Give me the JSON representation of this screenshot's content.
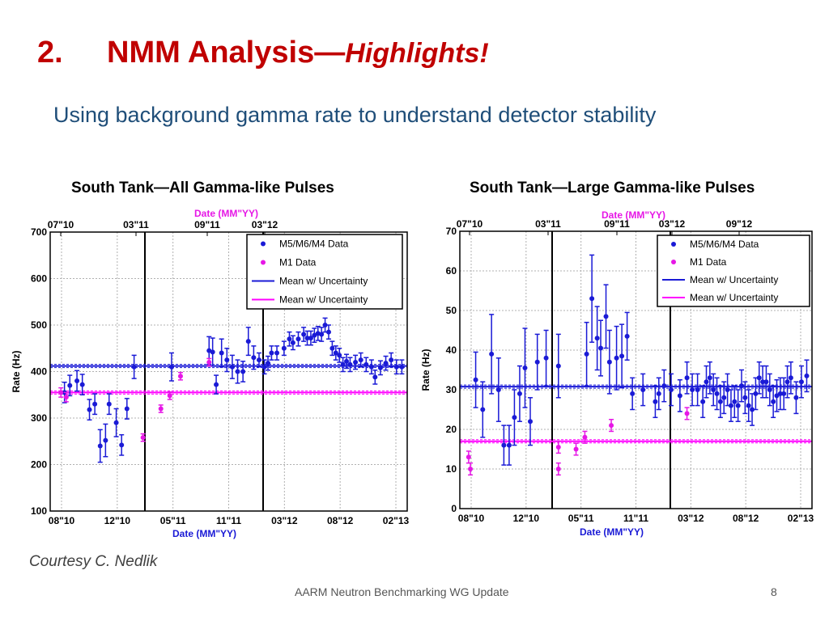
{
  "slide": {
    "title_number": "2.",
    "title_main": "NMM Analysis—",
    "title_highlight": "Highlights!",
    "subtitle": "Using background gamma rate to understand detector stability",
    "courtesy": "Courtesy C. Nedlik",
    "footer": "AARM Neutron Benchmarking WG Update",
    "page_number": "8"
  },
  "colors": {
    "title": "#c00000",
    "subtitle": "#1f4e79",
    "m5m6m4": "#1a1ad6",
    "m1": "#e617e6",
    "mean_blue": "#1a1ad6",
    "mean_magenta": "#ff00ff"
  },
  "chart_data": [
    {
      "type": "scatter",
      "title": "South Tank—All Gamma-like Pulses",
      "ylabel": "Rate (Hz)",
      "xlabel": "Date (MM\"YY)",
      "top_xlabel": "Date (MM\"YY)",
      "ylim": [
        100,
        700
      ],
      "yticks": [
        "100",
        "200",
        "300",
        "400",
        "500",
        "600",
        "700"
      ],
      "bottom_ticks": [
        "08\"10",
        "12\"10",
        "05\"11",
        "11\"11",
        "03\"12",
        "08\"12",
        "02\"13"
      ],
      "top_ticks": [
        "07\"10",
        "03\"11",
        "09\"11",
        "03\"12"
      ],
      "vlines_at_tick": [
        "03\"11",
        "03\"12"
      ],
      "grid": true,
      "legend": {
        "placement": "top-right",
        "items": [
          "M5/M6/M4 Data",
          "M1 Data",
          "Mean w/ Uncertainty",
          "Mean w/ Uncertainty"
        ]
      },
      "mean_m5m6m4": 412,
      "mean_m1": 355,
      "series": [
        {
          "name": "M5/M6/M4 Data",
          "x": [
            0.04,
            0.055,
            0.075,
            0.09,
            0.11,
            0.125,
            0.14,
            0.155,
            0.165,
            0.185,
            0.2,
            0.215,
            0.235,
            0.34,
            0.445,
            0.455,
            0.465,
            0.48,
            0.495,
            0.51,
            0.525,
            0.54,
            0.555,
            0.57,
            0.585,
            0.6,
            0.61,
            0.62,
            0.635,
            0.655,
            0.67,
            0.68,
            0.695,
            0.71,
            0.72,
            0.73,
            0.74,
            0.75,
            0.76,
            0.77,
            0.78,
            0.79,
            0.8,
            0.81,
            0.82,
            0.83,
            0.84,
            0.855,
            0.87,
            0.885,
            0.9,
            0.91,
            0.925,
            0.94,
            0.955,
            0.97,
            0.985
          ],
          "y": [
            355,
            370,
            380,
            372,
            318,
            330,
            240,
            252,
            330,
            290,
            242,
            320,
            410,
            410,
            445,
            442,
            372,
            440,
            425,
            410,
            400,
            400,
            465,
            430,
            425,
            410,
            418,
            440,
            440,
            450,
            470,
            462,
            470,
            480,
            472,
            472,
            478,
            482,
            480,
            500,
            485,
            450,
            440,
            435,
            415,
            422,
            415,
            420,
            425,
            415,
            410,
            388,
            408,
            418,
            425,
            410,
            410
          ],
          "err": [
            22,
            22,
            22,
            22,
            22,
            22,
            35,
            35,
            22,
            30,
            22,
            22,
            25,
            30,
            30,
            30,
            20,
            30,
            25,
            25,
            25,
            22,
            30,
            25,
            15,
            15,
            15,
            15,
            15,
            15,
            15,
            15,
            15,
            15,
            15,
            15,
            15,
            15,
            15,
            15,
            15,
            15,
            15,
            15,
            15,
            15,
            15,
            15,
            15,
            15,
            15,
            15,
            15,
            15,
            15,
            15,
            15
          ]
        },
        {
          "name": "M1 Data",
          "x": [
            0.03,
            0.045,
            0.26,
            0.31,
            0.335,
            0.365,
            0.445
          ],
          "y": [
            355,
            345,
            258,
            320,
            348,
            390,
            420
          ],
          "err": [
            10,
            10,
            8,
            8,
            8,
            8,
            8
          ]
        }
      ]
    },
    {
      "type": "scatter",
      "title": "South Tank—Large Gamma-like Pulses",
      "ylabel": "Rate (Hz)",
      "xlabel": "Date (MM\"YY)",
      "top_xlabel": "Date (MM\"YY)",
      "ylim": [
        0,
        70
      ],
      "yticks": [
        "0",
        "10",
        "20",
        "30",
        "40",
        "50",
        "60",
        "70"
      ],
      "bottom_ticks": [
        "08\"10",
        "12\"10",
        "05\"11",
        "11\"11",
        "03\"12",
        "08\"12",
        "02\"13"
      ],
      "top_ticks": [
        "07\"10",
        "03\"11",
        "09\"11",
        "03\"12",
        "09\"12"
      ],
      "vlines_at_tick": [
        "03\"11",
        "03\"12"
      ],
      "grid": true,
      "legend": {
        "placement": "top-right",
        "items": [
          "M5/M6/M4 Data",
          "M1 Data",
          "Mean w/ Uncertainty",
          "Mean w/ Uncertainty"
        ]
      },
      "mean_m5m6m4": 30.8,
      "mean_m1": 17,
      "series": [
        {
          "name": "M5/M6/M4 Data",
          "x": [
            0.045,
            0.065,
            0.09,
            0.11,
            0.125,
            0.14,
            0.155,
            0.17,
            0.185,
            0.2,
            0.22,
            0.245,
            0.28,
            0.36,
            0.375,
            0.39,
            0.4,
            0.415,
            0.425,
            0.445,
            0.46,
            0.475,
            0.49,
            0.52,
            0.555,
            0.565,
            0.58,
            0.6,
            0.625,
            0.645,
            0.66,
            0.675,
            0.69,
            0.7,
            0.71,
            0.72,
            0.73,
            0.74,
            0.75,
            0.76,
            0.77,
            0.78,
            0.79,
            0.8,
            0.81,
            0.82,
            0.83,
            0.84,
            0.85,
            0.86,
            0.87,
            0.88,
            0.89,
            0.9,
            0.91,
            0.92,
            0.93,
            0.94,
            0.955,
            0.97,
            0.985
          ],
          "y": [
            32.5,
            25,
            39,
            30,
            16,
            16,
            23,
            29,
            35.5,
            22,
            37,
            38,
            36,
            39,
            53,
            43,
            40.5,
            48.5,
            37,
            38,
            38.5,
            43.5,
            29,
            30,
            27,
            29,
            31,
            30,
            28.5,
            33,
            30,
            30,
            27,
            32,
            33,
            30,
            29,
            27,
            28,
            30,
            26,
            27,
            26,
            31,
            28,
            26,
            25,
            29,
            33,
            32,
            32,
            30,
            27,
            28.5,
            29,
            29,
            32,
            33,
            28,
            32,
            33.5
          ],
          "err": [
            7,
            7,
            10,
            8,
            5,
            5,
            7,
            7,
            10,
            6,
            7,
            7,
            8,
            8,
            11,
            8,
            7,
            8,
            8,
            8,
            8,
            6,
            4,
            4,
            4,
            4,
            4,
            4,
            4,
            4,
            4,
            4,
            4,
            4,
            4,
            4,
            4,
            4,
            4,
            4,
            4,
            4,
            4,
            4,
            4,
            4,
            4,
            4,
            4,
            4,
            4,
            4,
            4,
            4,
            4,
            4,
            4,
            4,
            4,
            4,
            4
          ]
        },
        {
          "name": "M1 Data",
          "x": [
            0.025,
            0.03,
            0.28,
            0.28,
            0.33,
            0.355,
            0.43,
            0.645
          ],
          "y": [
            13,
            10,
            10,
            15.5,
            15,
            18,
            21,
            24
          ],
          "err": [
            1.5,
            1.5,
            1.5,
            1.5,
            1.5,
            1.5,
            1.5,
            1.5
          ]
        }
      ]
    }
  ]
}
